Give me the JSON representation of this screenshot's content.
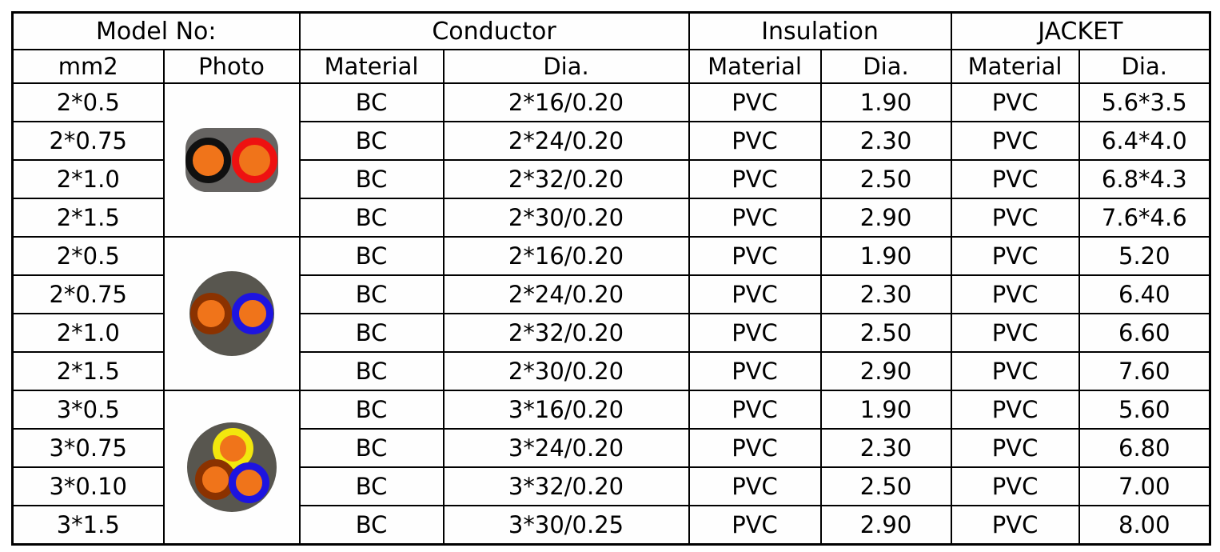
{
  "colors": {
    "border": "#000000",
    "jacket_grey_flat": "#666462",
    "jacket_grey_round": "#58564f",
    "core_orange": "#f0741a",
    "ring_black": "#101010",
    "ring_red": "#ee1111",
    "ring_blue": "#1d14e0",
    "ring_yellow": "#f2e70e",
    "ring_brown": "#8b3200"
  },
  "table": {
    "header_groups": [
      {
        "label": "Model No:",
        "span": 2
      },
      {
        "label": "Conductor",
        "span": 2
      },
      {
        "label": "Insulation",
        "span": 2
      },
      {
        "label": "JACKET",
        "span": 2
      }
    ],
    "subheaders": [
      "mm2",
      "Photo",
      "Material",
      "Dia.",
      "Material",
      "Dia.",
      "Material",
      "Dia."
    ],
    "groups": [
      {
        "photo": "flat-2core",
        "photo_desc": "flat grey 2-core cable, black ring and red ring cores with orange centers",
        "rows": [
          {
            "mm2": "2*0.5",
            "conductor_material": "BC",
            "conductor_dia": "2*16/0.20",
            "insulation_material": "PVC",
            "insulation_dia": "1.90",
            "jacket_material": "PVC",
            "jacket_dia": "5.6*3.5"
          },
          {
            "mm2": "2*0.75",
            "conductor_material": "BC",
            "conductor_dia": "2*24/0.20",
            "insulation_material": "PVC",
            "insulation_dia": "2.30",
            "jacket_material": "PVC",
            "jacket_dia": "6.4*4.0"
          },
          {
            "mm2": "2*1.0",
            "conductor_material": "BC",
            "conductor_dia": "2*32/0.20",
            "insulation_material": "PVC",
            "insulation_dia": "2.50",
            "jacket_material": "PVC",
            "jacket_dia": "6.8*4.3"
          },
          {
            "mm2": "2*1.5",
            "conductor_material": "BC",
            "conductor_dia": "2*30/0.20",
            "insulation_material": "PVC",
            "insulation_dia": "2.90",
            "jacket_material": "PVC",
            "jacket_dia": "7.6*4.6"
          }
        ]
      },
      {
        "photo": "round-2core",
        "photo_desc": "round grey 2-core cable, brown ring and blue ring cores with orange centers",
        "rows": [
          {
            "mm2": "2*0.5",
            "conductor_material": "BC",
            "conductor_dia": "2*16/0.20",
            "insulation_material": "PVC",
            "insulation_dia": "1.90",
            "jacket_material": "PVC",
            "jacket_dia": "5.20"
          },
          {
            "mm2": "2*0.75",
            "conductor_material": "BC",
            "conductor_dia": "2*24/0.20",
            "insulation_material": "PVC",
            "insulation_dia": "2.30",
            "jacket_material": "PVC",
            "jacket_dia": "6.40"
          },
          {
            "mm2": "2*1.0",
            "conductor_material": "BC",
            "conductor_dia": "2*32/0.20",
            "insulation_material": "PVC",
            "insulation_dia": "2.50",
            "jacket_material": "PVC",
            "jacket_dia": "6.60"
          },
          {
            "mm2": "2*1.5",
            "conductor_material": "BC",
            "conductor_dia": "2*30/0.20",
            "insulation_material": "PVC",
            "insulation_dia": "2.90",
            "jacket_material": "PVC",
            "jacket_dia": "7.60"
          }
        ]
      },
      {
        "photo": "round-3core",
        "photo_desc": "round grey 3-core cable, yellow, brown and blue ring cores with orange centers",
        "rows": [
          {
            "mm2": "3*0.5",
            "conductor_material": "BC",
            "conductor_dia": "3*16/0.20",
            "insulation_material": "PVC",
            "insulation_dia": "1.90",
            "jacket_material": "PVC",
            "jacket_dia": "5.60"
          },
          {
            "mm2": "3*0.75",
            "conductor_material": "BC",
            "conductor_dia": "3*24/0.20",
            "insulation_material": "PVC",
            "insulation_dia": "2.30",
            "jacket_material": "PVC",
            "jacket_dia": "6.80"
          },
          {
            "mm2": "3*0.10",
            "conductor_material": "BC",
            "conductor_dia": "3*32/0.20",
            "insulation_material": "PVC",
            "insulation_dia": "2.50",
            "jacket_material": "PVC",
            "jacket_dia": "7.00"
          },
          {
            "mm2": "3*1.5",
            "conductor_material": "BC",
            "conductor_dia": "3*30/0.25",
            "insulation_material": "PVC",
            "insulation_dia": "2.90",
            "jacket_material": "PVC",
            "jacket_dia": "8.00"
          }
        ]
      }
    ]
  }
}
